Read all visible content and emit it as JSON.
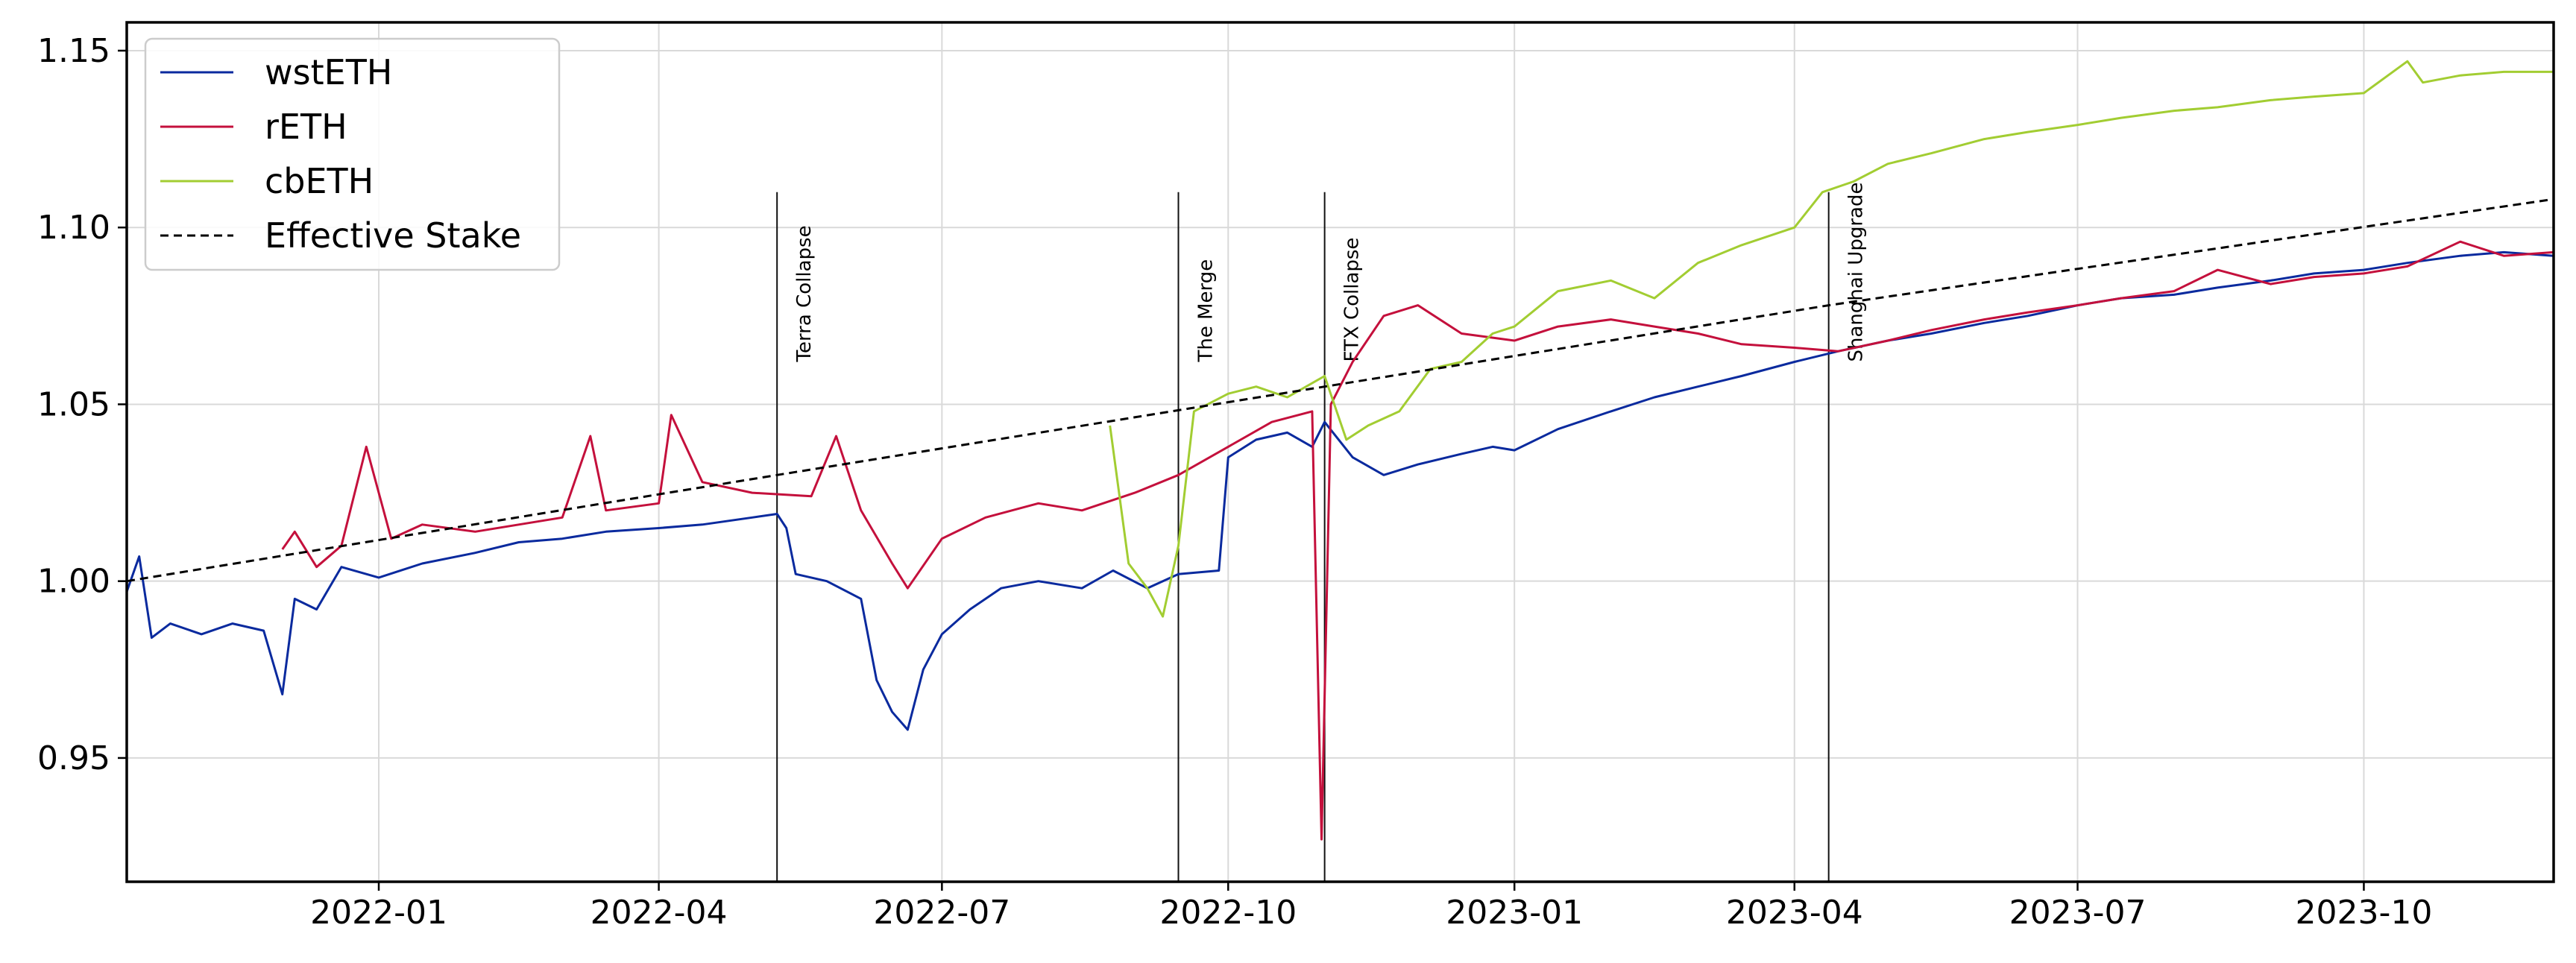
{
  "chart_data": {
    "type": "line",
    "title": "",
    "xlabel": "",
    "ylabel": "",
    "xlim": [
      "2021-10-12",
      "2023-12-01"
    ],
    "ylim": [
      0.915,
      1.158
    ],
    "grid": true,
    "legend_position": "top-left",
    "x_ticks": [
      "2022-01",
      "2022-04",
      "2022-07",
      "2022-10",
      "2023-01",
      "2023-04",
      "2023-07",
      "2023-10"
    ],
    "y_ticks": [
      0.95,
      1.0,
      1.05,
      1.1,
      1.15
    ],
    "y_tick_labels": [
      "0.95",
      "1.00",
      "1.05",
      "1.10",
      "1.15"
    ],
    "annotations": [
      {
        "label": "Terra Collapse",
        "date": "2022-05-09"
      },
      {
        "label": "The Merge",
        "date": "2022-09-15"
      },
      {
        "label": "FTX Collapse",
        "date": "2022-11-01"
      },
      {
        "label": "Shanghai Upgrade",
        "date": "2023-04-12"
      }
    ],
    "series": [
      {
        "name": "wstETH",
        "color": "#0a2a9e",
        "style": "solid",
        "points": [
          [
            "2021-10-12",
            0.997
          ],
          [
            "2021-10-16",
            1.007
          ],
          [
            "2021-10-20",
            0.984
          ],
          [
            "2021-10-26",
            0.988
          ],
          [
            "2021-11-05",
            0.985
          ],
          [
            "2021-11-15",
            0.988
          ],
          [
            "2021-11-25",
            0.986
          ],
          [
            "2021-12-01",
            0.968
          ],
          [
            "2021-12-05",
            0.995
          ],
          [
            "2021-12-12",
            0.992
          ],
          [
            "2021-12-20",
            1.004
          ],
          [
            "2022-01-01",
            1.001
          ],
          [
            "2022-01-15",
            1.005
          ],
          [
            "2022-02-01",
            1.008
          ],
          [
            "2022-02-15",
            1.011
          ],
          [
            "2022-03-01",
            1.012
          ],
          [
            "2022-03-15",
            1.014
          ],
          [
            "2022-04-01",
            1.015
          ],
          [
            "2022-04-15",
            1.016
          ],
          [
            "2022-05-01",
            1.018
          ],
          [
            "2022-05-09",
            1.019
          ],
          [
            "2022-05-12",
            1.015
          ],
          [
            "2022-05-15",
            1.002
          ],
          [
            "2022-05-25",
            1.0
          ],
          [
            "2022-06-05",
            0.995
          ],
          [
            "2022-06-10",
            0.972
          ],
          [
            "2022-06-15",
            0.963
          ],
          [
            "2022-06-20",
            0.958
          ],
          [
            "2022-06-25",
            0.975
          ],
          [
            "2022-07-01",
            0.985
          ],
          [
            "2022-07-10",
            0.992
          ],
          [
            "2022-07-20",
            0.998
          ],
          [
            "2022-08-01",
            1.0
          ],
          [
            "2022-08-15",
            0.998
          ],
          [
            "2022-08-25",
            1.003
          ],
          [
            "2022-09-05",
            0.998
          ],
          [
            "2022-09-15",
            1.002
          ],
          [
            "2022-09-28",
            1.003
          ],
          [
            "2022-10-01",
            1.035
          ],
          [
            "2022-10-10",
            1.04
          ],
          [
            "2022-10-20",
            1.042
          ],
          [
            "2022-10-28",
            1.038
          ],
          [
            "2022-11-01",
            1.045
          ],
          [
            "2022-11-10",
            1.035
          ],
          [
            "2022-11-20",
            1.03
          ],
          [
            "2022-12-01",
            1.033
          ],
          [
            "2022-12-15",
            1.036
          ],
          [
            "2022-12-25",
            1.038
          ],
          [
            "2023-01-01",
            1.037
          ],
          [
            "2023-01-15",
            1.043
          ],
          [
            "2023-02-01",
            1.048
          ],
          [
            "2023-02-15",
            1.052
          ],
          [
            "2023-03-01",
            1.055
          ],
          [
            "2023-03-15",
            1.058
          ],
          [
            "2023-04-01",
            1.062
          ],
          [
            "2023-04-15",
            1.065
          ],
          [
            "2023-05-01",
            1.068
          ],
          [
            "2023-05-15",
            1.07
          ],
          [
            "2023-06-01",
            1.073
          ],
          [
            "2023-06-15",
            1.075
          ],
          [
            "2023-07-01",
            1.078
          ],
          [
            "2023-07-15",
            1.08
          ],
          [
            "2023-08-01",
            1.081
          ],
          [
            "2023-08-15",
            1.083
          ],
          [
            "2023-09-01",
            1.085
          ],
          [
            "2023-09-15",
            1.087
          ],
          [
            "2023-10-01",
            1.088
          ],
          [
            "2023-10-15",
            1.09
          ],
          [
            "2023-11-01",
            1.092
          ],
          [
            "2023-11-15",
            1.093
          ],
          [
            "2023-12-01",
            1.092
          ]
        ]
      },
      {
        "name": "rETH",
        "color": "#c4103c",
        "style": "solid",
        "points": [
          [
            "2021-12-01",
            1.009
          ],
          [
            "2021-12-05",
            1.014
          ],
          [
            "2021-12-12",
            1.004
          ],
          [
            "2021-12-20",
            1.01
          ],
          [
            "2021-12-28",
            1.038
          ],
          [
            "2022-01-05",
            1.012
          ],
          [
            "2022-01-15",
            1.016
          ],
          [
            "2022-02-01",
            1.014
          ],
          [
            "2022-02-15",
            1.016
          ],
          [
            "2022-03-01",
            1.018
          ],
          [
            "2022-03-10",
            1.041
          ],
          [
            "2022-03-15",
            1.02
          ],
          [
            "2022-04-01",
            1.022
          ],
          [
            "2022-04-05",
            1.047
          ],
          [
            "2022-04-15",
            1.028
          ],
          [
            "2022-05-01",
            1.025
          ],
          [
            "2022-05-20",
            1.024
          ],
          [
            "2022-05-28",
            1.041
          ],
          [
            "2022-06-05",
            1.02
          ],
          [
            "2022-06-15",
            1.005
          ],
          [
            "2022-06-20",
            0.998
          ],
          [
            "2022-07-01",
            1.012
          ],
          [
            "2022-07-15",
            1.018
          ],
          [
            "2022-08-01",
            1.022
          ],
          [
            "2022-08-15",
            1.02
          ],
          [
            "2022-09-01",
            1.025
          ],
          [
            "2022-09-15",
            1.03
          ],
          [
            "2022-10-01",
            1.038
          ],
          [
            "2022-10-15",
            1.045
          ],
          [
            "2022-10-28",
            1.048
          ],
          [
            "2022-10-31",
            0.927
          ],
          [
            "2022-11-03",
            1.05
          ],
          [
            "2022-11-10",
            1.062
          ],
          [
            "2022-11-20",
            1.075
          ],
          [
            "2022-12-01",
            1.078
          ],
          [
            "2022-12-15",
            1.07
          ],
          [
            "2023-01-01",
            1.068
          ],
          [
            "2023-01-15",
            1.072
          ],
          [
            "2023-02-01",
            1.074
          ],
          [
            "2023-02-15",
            1.072
          ],
          [
            "2023-03-01",
            1.07
          ],
          [
            "2023-03-15",
            1.067
          ],
          [
            "2023-04-01",
            1.066
          ],
          [
            "2023-04-15",
            1.065
          ],
          [
            "2023-05-01",
            1.068
          ],
          [
            "2023-05-15",
            1.071
          ],
          [
            "2023-06-01",
            1.074
          ],
          [
            "2023-06-15",
            1.076
          ],
          [
            "2023-07-01",
            1.078
          ],
          [
            "2023-07-15",
            1.08
          ],
          [
            "2023-08-01",
            1.082
          ],
          [
            "2023-08-15",
            1.088
          ],
          [
            "2023-09-01",
            1.084
          ],
          [
            "2023-09-15",
            1.086
          ],
          [
            "2023-10-01",
            1.087
          ],
          [
            "2023-10-15",
            1.089
          ],
          [
            "2023-11-01",
            1.096
          ],
          [
            "2023-11-15",
            1.092
          ],
          [
            "2023-12-01",
            1.093
          ]
        ]
      },
      {
        "name": "cbETH",
        "color": "#a2cd32",
        "style": "solid",
        "points": [
          [
            "2022-08-24",
            1.044
          ],
          [
            "2022-08-30",
            1.005
          ],
          [
            "2022-09-05",
            0.998
          ],
          [
            "2022-09-10",
            0.99
          ],
          [
            "2022-09-15",
            1.01
          ],
          [
            "2022-09-20",
            1.048
          ],
          [
            "2022-10-01",
            1.053
          ],
          [
            "2022-10-10",
            1.055
          ],
          [
            "2022-10-20",
            1.052
          ],
          [
            "2022-11-01",
            1.058
          ],
          [
            "2022-11-08",
            1.04
          ],
          [
            "2022-11-15",
            1.044
          ],
          [
            "2022-11-25",
            1.048
          ],
          [
            "2022-12-05",
            1.06
          ],
          [
            "2022-12-15",
            1.062
          ],
          [
            "2022-12-25",
            1.07
          ],
          [
            "2023-01-01",
            1.072
          ],
          [
            "2023-01-15",
            1.082
          ],
          [
            "2023-02-01",
            1.085
          ],
          [
            "2023-02-15",
            1.08
          ],
          [
            "2023-03-01",
            1.09
          ],
          [
            "2023-03-15",
            1.095
          ],
          [
            "2023-04-01",
            1.1
          ],
          [
            "2023-04-10",
            1.11
          ],
          [
            "2023-04-20",
            1.113
          ],
          [
            "2023-05-01",
            1.118
          ],
          [
            "2023-05-15",
            1.121
          ],
          [
            "2023-06-01",
            1.125
          ],
          [
            "2023-06-15",
            1.127
          ],
          [
            "2023-07-01",
            1.129
          ],
          [
            "2023-07-15",
            1.131
          ],
          [
            "2023-08-01",
            1.133
          ],
          [
            "2023-08-15",
            1.134
          ],
          [
            "2023-09-01",
            1.136
          ],
          [
            "2023-09-15",
            1.137
          ],
          [
            "2023-10-01",
            1.138
          ],
          [
            "2023-10-15",
            1.147
          ],
          [
            "2023-10-20",
            1.141
          ],
          [
            "2023-11-01",
            1.143
          ],
          [
            "2023-11-15",
            1.144
          ],
          [
            "2023-12-01",
            1.144
          ]
        ]
      },
      {
        "name": "Effective Stake",
        "color": "#000000",
        "style": "dashed",
        "points": [
          [
            "2021-10-12",
            1.0
          ],
          [
            "2022-05-09",
            1.03
          ],
          [
            "2022-11-01",
            1.055
          ],
          [
            "2023-04-12",
            1.078
          ],
          [
            "2023-12-01",
            1.108
          ]
        ]
      }
    ]
  }
}
